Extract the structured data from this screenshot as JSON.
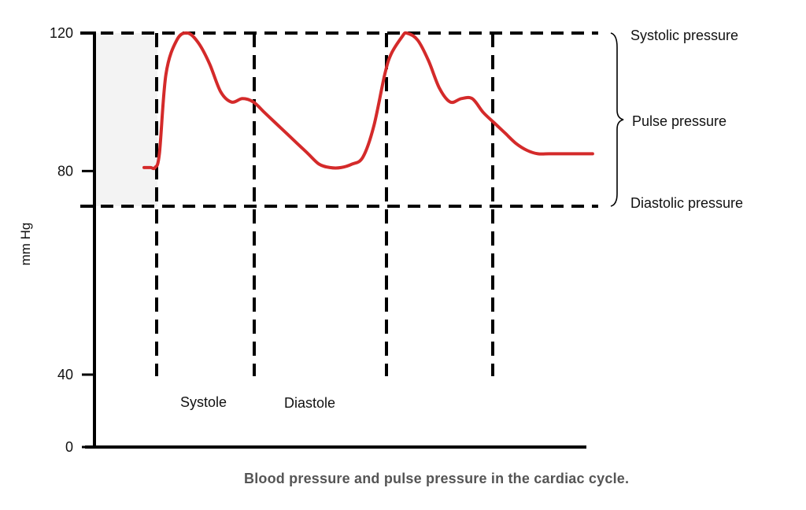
{
  "caption": "Blood pressure and pulse pressure in the cardiac cycle.",
  "chart_data": {
    "type": "line",
    "title": "",
    "ylabel": "mm Hg",
    "xlabel": "",
    "ylim": [
      0,
      120
    ],
    "yticks": [
      "0",
      "40",
      "80",
      "120"
    ],
    "ytick_values": [
      0,
      40,
      80,
      120
    ],
    "series": [
      {
        "color": "#d42a2a",
        "x": [
          0,
          0.3,
          0.5,
          0.7,
          1.0,
          1.5,
          2.0,
          2.5,
          3.0,
          3.5,
          4.0,
          4.5,
          5.0,
          5.5,
          6.0,
          6.5,
          7.0,
          7.5,
          8.0,
          8.5,
          9.0,
          9.5,
          10.0,
          10.5,
          11.0,
          11.3,
          11.8,
          12.0,
          12.5,
          13.0,
          13.5,
          14.0,
          14.5,
          15.0,
          15.5,
          16.0,
          16.5,
          17.0,
          17.5,
          18.0,
          18.5,
          19.0,
          19.5,
          20.0,
          20.5
        ],
        "values": [
          81,
          81,
          81,
          85,
          108,
          118,
          120,
          117,
          111,
          103,
          100,
          101,
          100,
          97,
          94,
          91,
          88,
          85,
          82,
          81,
          81,
          82,
          84,
          93,
          108,
          114,
          119,
          120,
          118,
          112,
          104,
          100,
          101,
          101,
          97,
          94,
          91,
          88,
          86,
          85,
          85,
          85,
          85,
          85,
          85
        ]
      }
    ],
    "reference_lines": {
      "horizontal": [
        120,
        80
      ],
      "vertical_phase_marks": [
        "systole-start-1",
        "diastole-start-1",
        "systole-start-2",
        "diastole-start-2"
      ]
    },
    "annotations": {
      "systolic": "Systolic pressure",
      "pulse": "Pulse pressure",
      "diastolic": "Diastolic pressure",
      "systole": "Systole",
      "diastole": "Diastole"
    }
  }
}
